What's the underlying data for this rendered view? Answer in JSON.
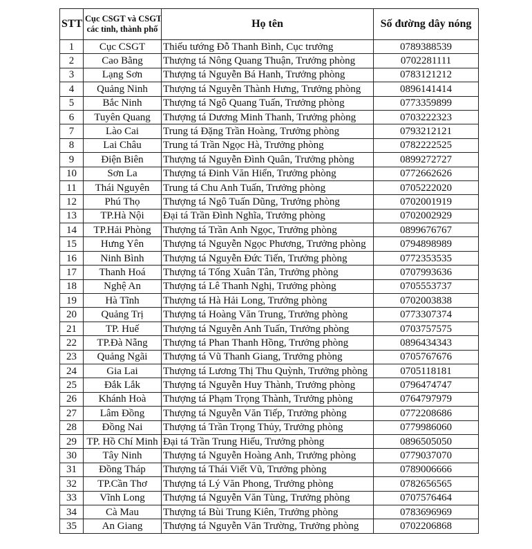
{
  "headers": {
    "stt": "STT",
    "unit_line1": "Cục CSGT và CSGT",
    "unit_line2": "các tỉnh, thành phố",
    "name": "Họ tên",
    "phone": "Số đường dây nóng"
  },
  "rows": [
    {
      "stt": "1",
      "unit": "Cục CSGT",
      "name": "Thiếu tướng Đỗ Thanh Bình, Cục trưởng",
      "phone": "0789388539"
    },
    {
      "stt": "2",
      "unit": "Cao Bằng",
      "name": "Thượng tá Nông Quang Thuận, Trưởng phòng",
      "phone": "0702281111"
    },
    {
      "stt": "3",
      "unit": "Lạng Sơn",
      "name": "Thượng tá Nguyễn Bá Hanh, Trưởng phòng",
      "phone": "0783121212"
    },
    {
      "stt": "4",
      "unit": "Quảng Ninh",
      "name": "Thượng tá Nguyễn Thành Hưng, Trưởng phòng",
      "phone": "0896141414"
    },
    {
      "stt": "5",
      "unit": "Bắc Ninh",
      "name": "Thượng tá Ngô Quang Tuấn, Trưởng phòng",
      "phone": "0773359899"
    },
    {
      "stt": "6",
      "unit": "Tuyên Quang",
      "name": "Thượng tá Dương Minh Thanh, Trưởng phòng",
      "phone": "0703222323"
    },
    {
      "stt": "7",
      "unit": "Lào Cai",
      "name": "Trung tá Đặng Trần Hoàng, Trưởng phòng",
      "phone": "0793212121"
    },
    {
      "stt": "8",
      "unit": "Lai Châu",
      "name": "Trung tá Trần Ngọc Hà, Trưởng phòng",
      "phone": "0782222525"
    },
    {
      "stt": "9",
      "unit": "Điện Biên",
      "name": "Thượng tá Nguyễn Đình Quân, Trưởng phòng",
      "phone": "0899272727"
    },
    {
      "stt": "10",
      "unit": "Sơn La",
      "name": "Thượng tá Đinh Văn Hiển, Trưởng phòng",
      "phone": "0772662626"
    },
    {
      "stt": "11",
      "unit": "Thái Nguyên",
      "name": "Trung tá Chu Anh Tuấn, Trưởng phòng",
      "phone": "0705222020"
    },
    {
      "stt": "12",
      "unit": "Phú Thọ",
      "name": "Thượng tá Ngô Tuấn Dũng, Trưởng phòng",
      "phone": "0702001919"
    },
    {
      "stt": "13",
      "unit": "TP.Hà Nội",
      "name": "Đại tá Trần Đình Nghĩa, Trưởng phòng",
      "phone": "0702002929"
    },
    {
      "stt": "14",
      "unit": "TP.Hải Phòng",
      "name": "Thượng tá Trần Anh Ngọc, Trưởng phòng",
      "phone": "0899676767"
    },
    {
      "stt": "15",
      "unit": "Hưng Yên",
      "name": "Thượng tá Nguyễn Ngọc Phương, Trưởng phòng",
      "phone": "0794898989"
    },
    {
      "stt": "16",
      "unit": "Ninh Bình",
      "name": "Thượng tá Nguyễn Đức Tiến, Trưởng phòng",
      "phone": "0772353535"
    },
    {
      "stt": "17",
      "unit": "Thanh Hoá",
      "name": "Thượng tá Tống Xuân Tân, Trưởng phòng",
      "phone": "0707993636"
    },
    {
      "stt": "18",
      "unit": "Nghệ An",
      "name": "Thượng tá Lê Thanh Nghị, Trưởng phòng",
      "phone": "0705553737"
    },
    {
      "stt": "19",
      "unit": "Hà Tĩnh",
      "name": "Thượng tá Hà Hải Long, Trưởng phòng",
      "phone": "0702003838"
    },
    {
      "stt": "20",
      "unit": "Quảng Trị",
      "name": "Thượng tá Hoàng Văn Trung, Trưởng phòng",
      "phone": "0773307374"
    },
    {
      "stt": "21",
      "unit": "TP. Huế",
      "name": "Thượng tá Nguyễn Anh Tuấn, Trưởng phòng",
      "phone": "0703757575"
    },
    {
      "stt": "22",
      "unit": "TP.Đà Nẵng",
      "name": "Thượng tá Phan Thanh Hồng, Trưởng phòng",
      "phone": "0896434343"
    },
    {
      "stt": "23",
      "unit": "Quảng Ngãi",
      "name": "Thượng tá Vũ Thanh Giang, Trưởng phòng",
      "phone": "0705767676"
    },
    {
      "stt": "24",
      "unit": "Gia Lai",
      "name": "Thượng tá Lương Thị Thu Quỳnh, Trưởng phòng",
      "phone": "0705118181"
    },
    {
      "stt": "25",
      "unit": "Đắk Lắk",
      "name": "Thượng tá Nguyễn Huy Thành, Trưởng phòng",
      "phone": "0796474747"
    },
    {
      "stt": "26",
      "unit": "Khánh Hoà",
      "name": "Thượng tá Phạm Trọng Thành, Trưởng phòng",
      "phone": "0764797979"
    },
    {
      "stt": "27",
      "unit": "Lâm Đồng",
      "name": "Thượng tá Nguyễn Văn Tiếp, Trưởng phòng",
      "phone": "0772208686"
    },
    {
      "stt": "28",
      "unit": "Đồng Nai",
      "name": "Thượng tá Trần Trọng Thủy, Trưởng phòng",
      "phone": "0779986060"
    },
    {
      "stt": "29",
      "unit": "TP. Hồ Chí Minh",
      "name": "Đại tá Trần Trung Hiếu, Trưởng phòng",
      "phone": "0896505050"
    },
    {
      "stt": "30",
      "unit": "Tây Ninh",
      "name": "Thượng tá Nguyễn Hoàng Anh, Trưởng phòng",
      "phone": "0779037070"
    },
    {
      "stt": "31",
      "unit": "Đồng Tháp",
      "name": "Thượng tá Thái Viết Vũ, Trưởng phòng",
      "phone": "0789006666"
    },
    {
      "stt": "32",
      "unit": "TP.Cần Thơ",
      "name": "Thượng tá Lý Văn Phong, Trưởng phòng",
      "phone": "0782656565"
    },
    {
      "stt": "33",
      "unit": "Vĩnh Long",
      "name": "Thượng tá Nguyễn Văn Tùng, Trưởng phòng",
      "phone": "0707576464"
    },
    {
      "stt": "34",
      "unit": "Cà Mau",
      "name": "Thượng tá Bùi Trung Kiên, Trưởng phòng",
      "phone": "0783696969"
    },
    {
      "stt": "35",
      "unit": "An Giang",
      "name": "Thượng tá Nguyễn Văn Trường, Trưởng phòng",
      "phone": "0702206868"
    }
  ]
}
